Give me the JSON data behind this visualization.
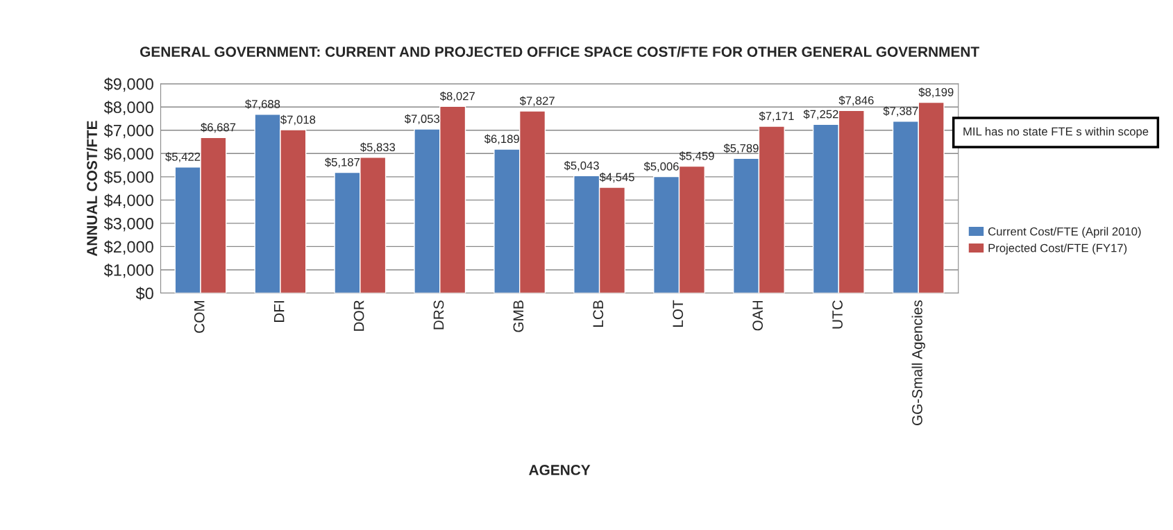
{
  "chart_data": {
    "type": "bar",
    "title": "GENERAL GOVERNMENT: CURRENT AND PROJECTED OFFICE SPACE COST/FTE FOR OTHER GENERAL GOVERNMENT",
    "xlabel": "AGENCY",
    "ylabel": "ANNUAL COST/FTE",
    "categories": [
      "COM",
      "DFI",
      "DOR",
      "DRS",
      "GMB",
      "LCB",
      "LOT",
      "OAH",
      "UTC",
      "GG-Small Agencies"
    ],
    "series": [
      {
        "name": "Current Cost/FTE (April 2010)",
        "color": "#4f81bd",
        "values": [
          5422,
          7688,
          5187,
          7053,
          6189,
          5043,
          5006,
          5789,
          7252,
          7387
        ],
        "value_labels": [
          "$5,422",
          "$7,688",
          "$5,187",
          "$7,053",
          "$6,189",
          "$5,043",
          "$5,006",
          "$5,789",
          "$7,252",
          "$7,387"
        ]
      },
      {
        "name": "Projected Cost/FTE (FY17)",
        "color": "#c0504d",
        "values": [
          6687,
          7018,
          5833,
          8027,
          7827,
          4545,
          5459,
          7171,
          7846,
          8199
        ],
        "value_labels": [
          "$6,687",
          "$7,018",
          "$5,833",
          "$8,027",
          "$7,827",
          "$4,545",
          "$5,459",
          "$7,171",
          "$7,846",
          "$8,199"
        ]
      }
    ],
    "ylim": [
      0,
      9000
    ],
    "yticks": [
      {
        "value": 0,
        "label": "$0"
      },
      {
        "value": 1000,
        "label": "$1,000"
      },
      {
        "value": 2000,
        "label": "$2,000"
      },
      {
        "value": 3000,
        "label": "$3,000"
      },
      {
        "value": 4000,
        "label": "$4,000"
      },
      {
        "value": 5000,
        "label": "$5,000"
      },
      {
        "value": 6000,
        "label": "$6,000"
      },
      {
        "value": 7000,
        "label": "$7,000"
      },
      {
        "value": 8000,
        "label": "$8,000"
      },
      {
        "value": 9000,
        "label": "$9,000"
      }
    ],
    "grid": "y",
    "legend": "right",
    "annotations": [
      "MIL has no state FTE s within scope"
    ]
  }
}
